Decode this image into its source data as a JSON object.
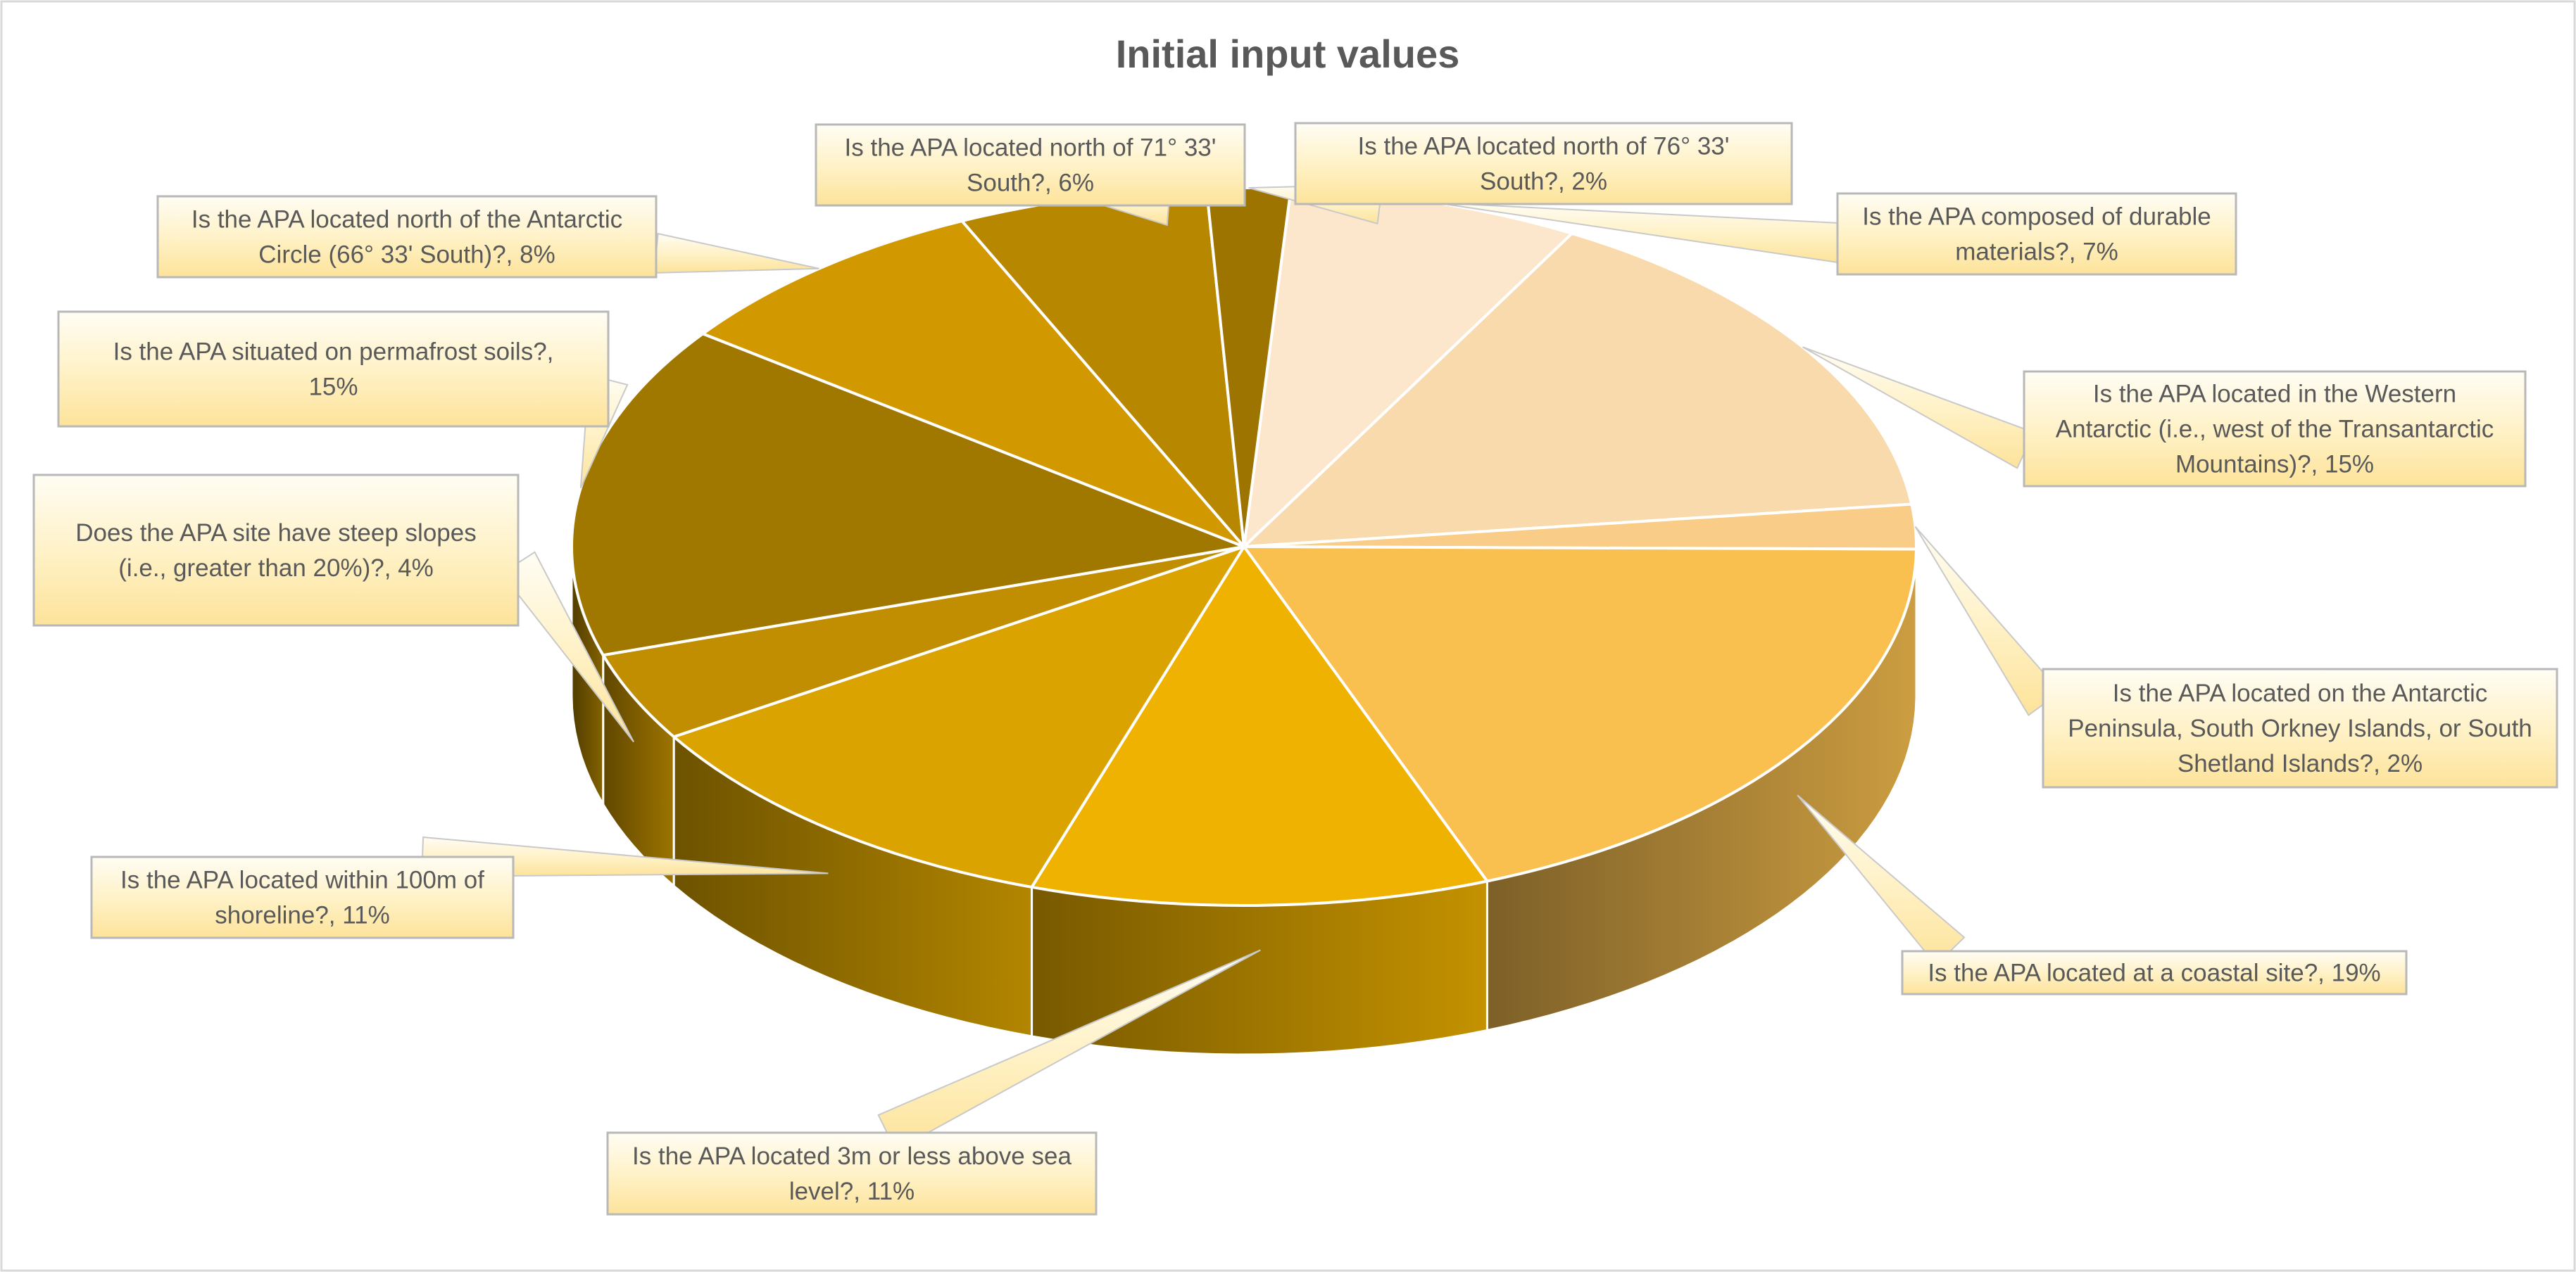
{
  "chart_data": {
    "type": "pie",
    "title": "Initial input values",
    "slices": [
      {
        "label": "Is the APA composed of durable materials?",
        "value": 7,
        "data_label": "Is the APA composed of durable materials?, 7%",
        "color": "#FCE6CC"
      },
      {
        "label": "Is the APA located in the Western Antarctic (i.e., west of the Transantarctic Mountains)?",
        "value": 15,
        "data_label": "Is the APA located in the Western Antarctic (i.e., west of the Transantarctic Mountains)?, 15%",
        "color": "#F9DAAD"
      },
      {
        "label": "Is the APA located on the Antarctic Peninsula, South Orkney Islands, or South Shetland Islands?",
        "value": 2,
        "data_label": "Is the APA located on the Antarctic Peninsula, South Orkney Islands, or South Shetland Islands?, 2%",
        "color": "#F9CD87"
      },
      {
        "label": "Is the APA located at a coastal site?",
        "value": 19,
        "data_label": "Is the APA located at a coastal site?, 19%",
        "color": "#F9C04F"
      },
      {
        "label": "Is the APA located 3m or less above sea level?",
        "value": 11,
        "data_label": "Is the APA located 3m or less above sea level?, 11%",
        "color": "#EFB200"
      },
      {
        "label": "Is the APA located within 100m of shoreline?",
        "value": 11,
        "data_label": "Is the APA located within 100m of shoreline?, 11%",
        "color": "#DAA300"
      },
      {
        "label": "Does the APA site have steep slopes (i.e., greater than 20%)?",
        "value": 4,
        "data_label": "Does the APA site have steep slopes (i.e., greater than 20%)?, 4%",
        "color": "#C08E00"
      },
      {
        "label": "Is the APA situated on permafrost soils?",
        "value": 15,
        "data_label": "Is the APA situated on permafrost soils?, 15%",
        "color": "#A07800"
      },
      {
        "label": "Is the APA located north of the Antarctic Circle (66° 33' South)?",
        "value": 8,
        "data_label": "Is the APA located north of the Antarctic Circle (66° 33' South)?, 8%",
        "color": "#D19800"
      },
      {
        "label": "Is the APA located north of 71° 33' South?",
        "value": 6,
        "data_label": "Is the APA located north of 71° 33' South?, 6%",
        "color": "#B88700"
      },
      {
        "label": "Is the APA located north of 76° 33' South?",
        "value": 2,
        "data_label": "Is the APA located north of 76° 33' South?, 2%",
        "color": "#9E7400"
      }
    ]
  }
}
